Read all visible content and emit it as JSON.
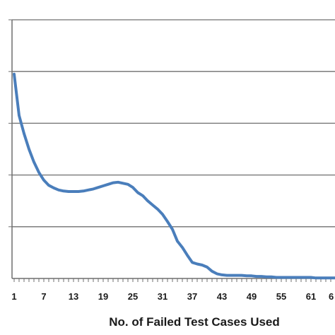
{
  "chart_data": {
    "type": "line",
    "title": "",
    "xlabel": "No. of Failed Test Cases Used",
    "ylabel": "",
    "grid": true,
    "legend": "none",
    "xlim": [
      1,
      66
    ],
    "ylim": [
      0,
      5
    ],
    "x_tick_labels": [
      "1",
      "7",
      "13",
      "19",
      "25",
      "31",
      "37",
      "43",
      "49",
      "55",
      "61",
      "6"
    ],
    "series": [
      {
        "color": "#4a7ebb",
        "x": [
          1,
          2,
          3,
          4,
          5,
          6,
          7,
          8,
          9,
          10,
          11,
          12,
          13,
          14,
          15,
          16,
          17,
          18,
          19,
          20,
          21,
          22,
          23,
          24,
          25,
          26,
          27,
          28,
          29,
          30,
          31,
          32,
          33,
          34,
          35,
          36,
          37,
          38,
          39,
          40,
          41,
          42,
          43,
          44,
          45,
          46,
          47,
          48,
          49,
          50,
          51,
          52,
          53,
          54,
          55,
          56,
          57,
          58,
          59,
          60,
          61,
          62,
          63,
          64,
          65,
          66
        ],
        "y": [
          3.95,
          3.15,
          2.8,
          2.5,
          2.25,
          2.05,
          1.9,
          1.8,
          1.75,
          1.71,
          1.69,
          1.68,
          1.68,
          1.68,
          1.69,
          1.71,
          1.73,
          1.76,
          1.79,
          1.82,
          1.85,
          1.86,
          1.84,
          1.82,
          1.76,
          1.66,
          1.6,
          1.5,
          1.42,
          1.34,
          1.24,
          1.1,
          0.95,
          0.72,
          0.6,
          0.45,
          0.31,
          0.28,
          0.26,
          0.22,
          0.14,
          0.09,
          0.07,
          0.06,
          0.06,
          0.06,
          0.06,
          0.05,
          0.05,
          0.04,
          0.04,
          0.03,
          0.03,
          0.02,
          0.02,
          0.02,
          0.02,
          0.02,
          0.02,
          0.02,
          0.02,
          0.01,
          0.01,
          0.01,
          0.01,
          0.01
        ]
      }
    ]
  }
}
